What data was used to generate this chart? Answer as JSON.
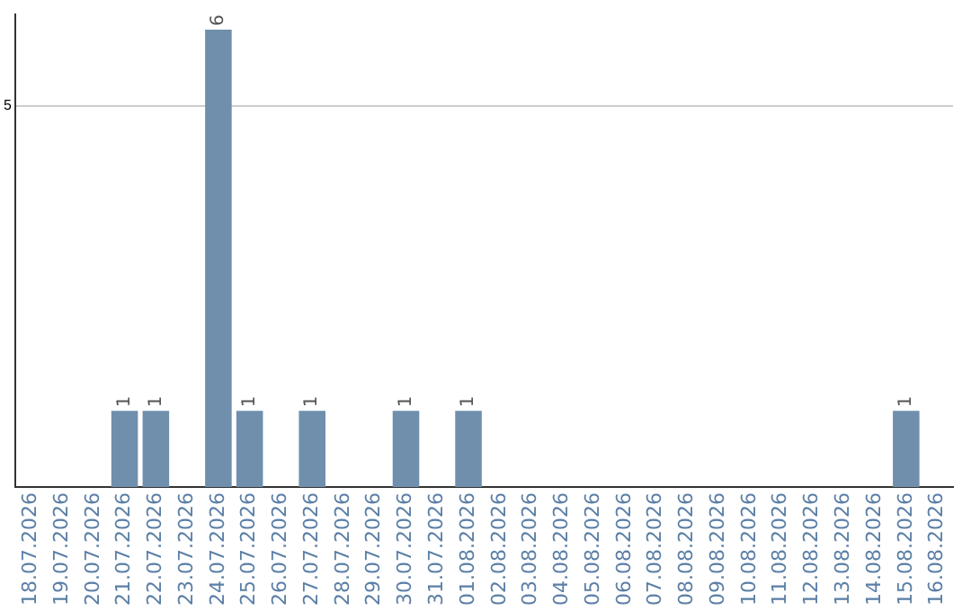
{
  "chart_data": {
    "type": "bar",
    "categories": [
      "18.07.2026",
      "19.07.2026",
      "20.07.2026",
      "21.07.2026",
      "22.07.2026",
      "23.07.2026",
      "24.07.2026",
      "25.07.2026",
      "26.07.2026",
      "27.07.2026",
      "28.07.2026",
      "29.07.2026",
      "30.07.2026",
      "31.07.2026",
      "01.08.2026",
      "02.08.2026",
      "03.08.2026",
      "04.08.2026",
      "05.08.2026",
      "06.08.2026",
      "07.08.2026",
      "08.08.2026",
      "09.08.2026",
      "10.08.2026",
      "11.08.2026",
      "12.08.2026",
      "13.08.2026",
      "14.08.2026",
      "15.08.2026",
      "16.08.2026"
    ],
    "values": [
      0,
      0,
      0,
      1,
      1,
      0,
      6,
      1,
      0,
      1,
      0,
      0,
      1,
      0,
      1,
      0,
      0,
      0,
      0,
      0,
      0,
      0,
      0,
      0,
      0,
      0,
      0,
      0,
      1,
      0
    ],
    "value_labels": [
      null,
      null,
      null,
      "1",
      "1",
      null,
      "6",
      "1",
      null,
      "1",
      null,
      null,
      "1",
      null,
      "1",
      null,
      null,
      null,
      null,
      null,
      null,
      null,
      null,
      null,
      null,
      null,
      null,
      null,
      "1",
      null
    ],
    "color": "#6f8fad",
    "ylim": [
      0,
      6.2
    ],
    "yticks": [
      5
    ],
    "grid": "y",
    "legend": false
  }
}
